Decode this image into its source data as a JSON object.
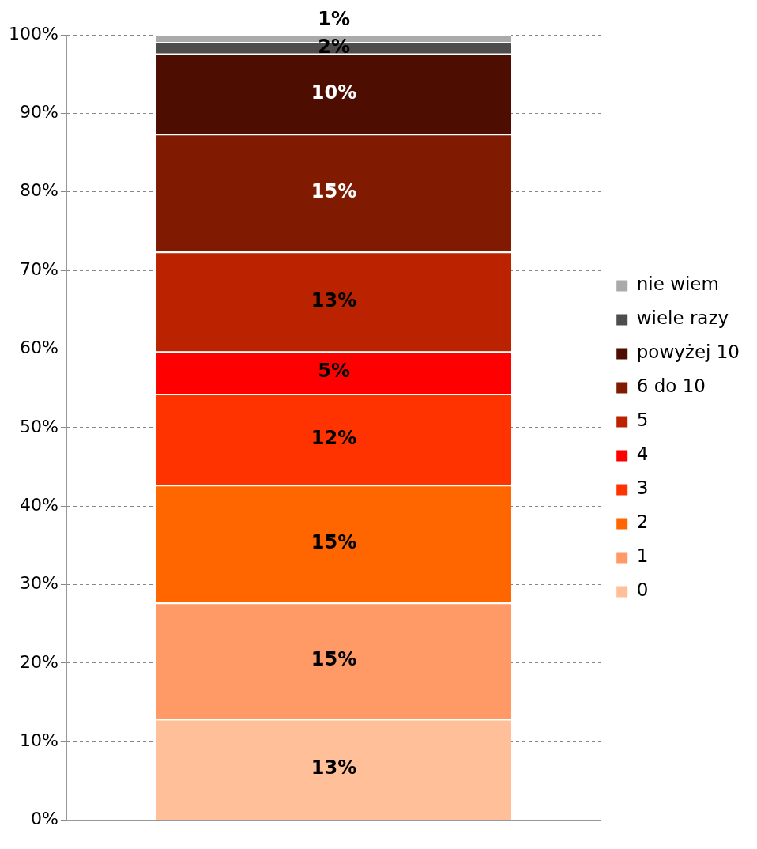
{
  "chart_data": {
    "type": "bar",
    "stacked": true,
    "categories": [
      null
    ],
    "series": [
      {
        "name": "0",
        "color": "#ffbf99",
        "values": [
          12.9
        ],
        "value_labels": [
          "13%"
        ]
      },
      {
        "name": "1",
        "color": "#ff9966",
        "values": [
          14.8
        ],
        "value_labels": [
          "15%"
        ]
      },
      {
        "name": "2",
        "color": "#ff6600",
        "values": [
          15.0
        ],
        "value_labels": [
          "15%"
        ]
      },
      {
        "name": "3",
        "color": "#ff3300",
        "values": [
          11.6
        ],
        "value_labels": [
          "12%"
        ]
      },
      {
        "name": "4",
        "color": "#ff0000",
        "values": [
          5.4
        ],
        "value_labels": [
          "5%"
        ]
      },
      {
        "name": "5",
        "color": "#bb2200",
        "values": [
          12.7
        ],
        "value_labels": [
          "13%"
        ]
      },
      {
        "name": "6 do 10",
        "color": "#801a00",
        "values": [
          15.0
        ],
        "value_labels": [
          "15%"
        ]
      },
      {
        "name": "powyżej 10",
        "color": "#4d0d00",
        "values": [
          10.2
        ],
        "value_labels": [
          "10%"
        ]
      },
      {
        "name": "wiele razy",
        "color": "#4d4d4d",
        "values": [
          1.5
        ],
        "value_labels": [
          "2%"
        ]
      },
      {
        "name": "nie wiem",
        "color": "#aaaaaa",
        "values": [
          0.9
        ],
        "value_labels": [
          "1%"
        ]
      }
    ],
    "ylim": [
      0,
      100
    ],
    "yticks": [
      {
        "value": 0,
        "label": "0%"
      },
      {
        "value": 10,
        "label": "10%"
      },
      {
        "value": 20,
        "label": "20%"
      },
      {
        "value": 30,
        "label": "30%"
      },
      {
        "value": 40,
        "label": "40%"
      },
      {
        "value": 50,
        "label": "50%"
      },
      {
        "value": 60,
        "label": "60%"
      },
      {
        "value": 70,
        "label": "70%"
      },
      {
        "value": 80,
        "label": "80%"
      },
      {
        "value": 90,
        "label": "90%"
      },
      {
        "value": 100,
        "label": "100%"
      }
    ],
    "grid": "y",
    "legend": "right"
  }
}
